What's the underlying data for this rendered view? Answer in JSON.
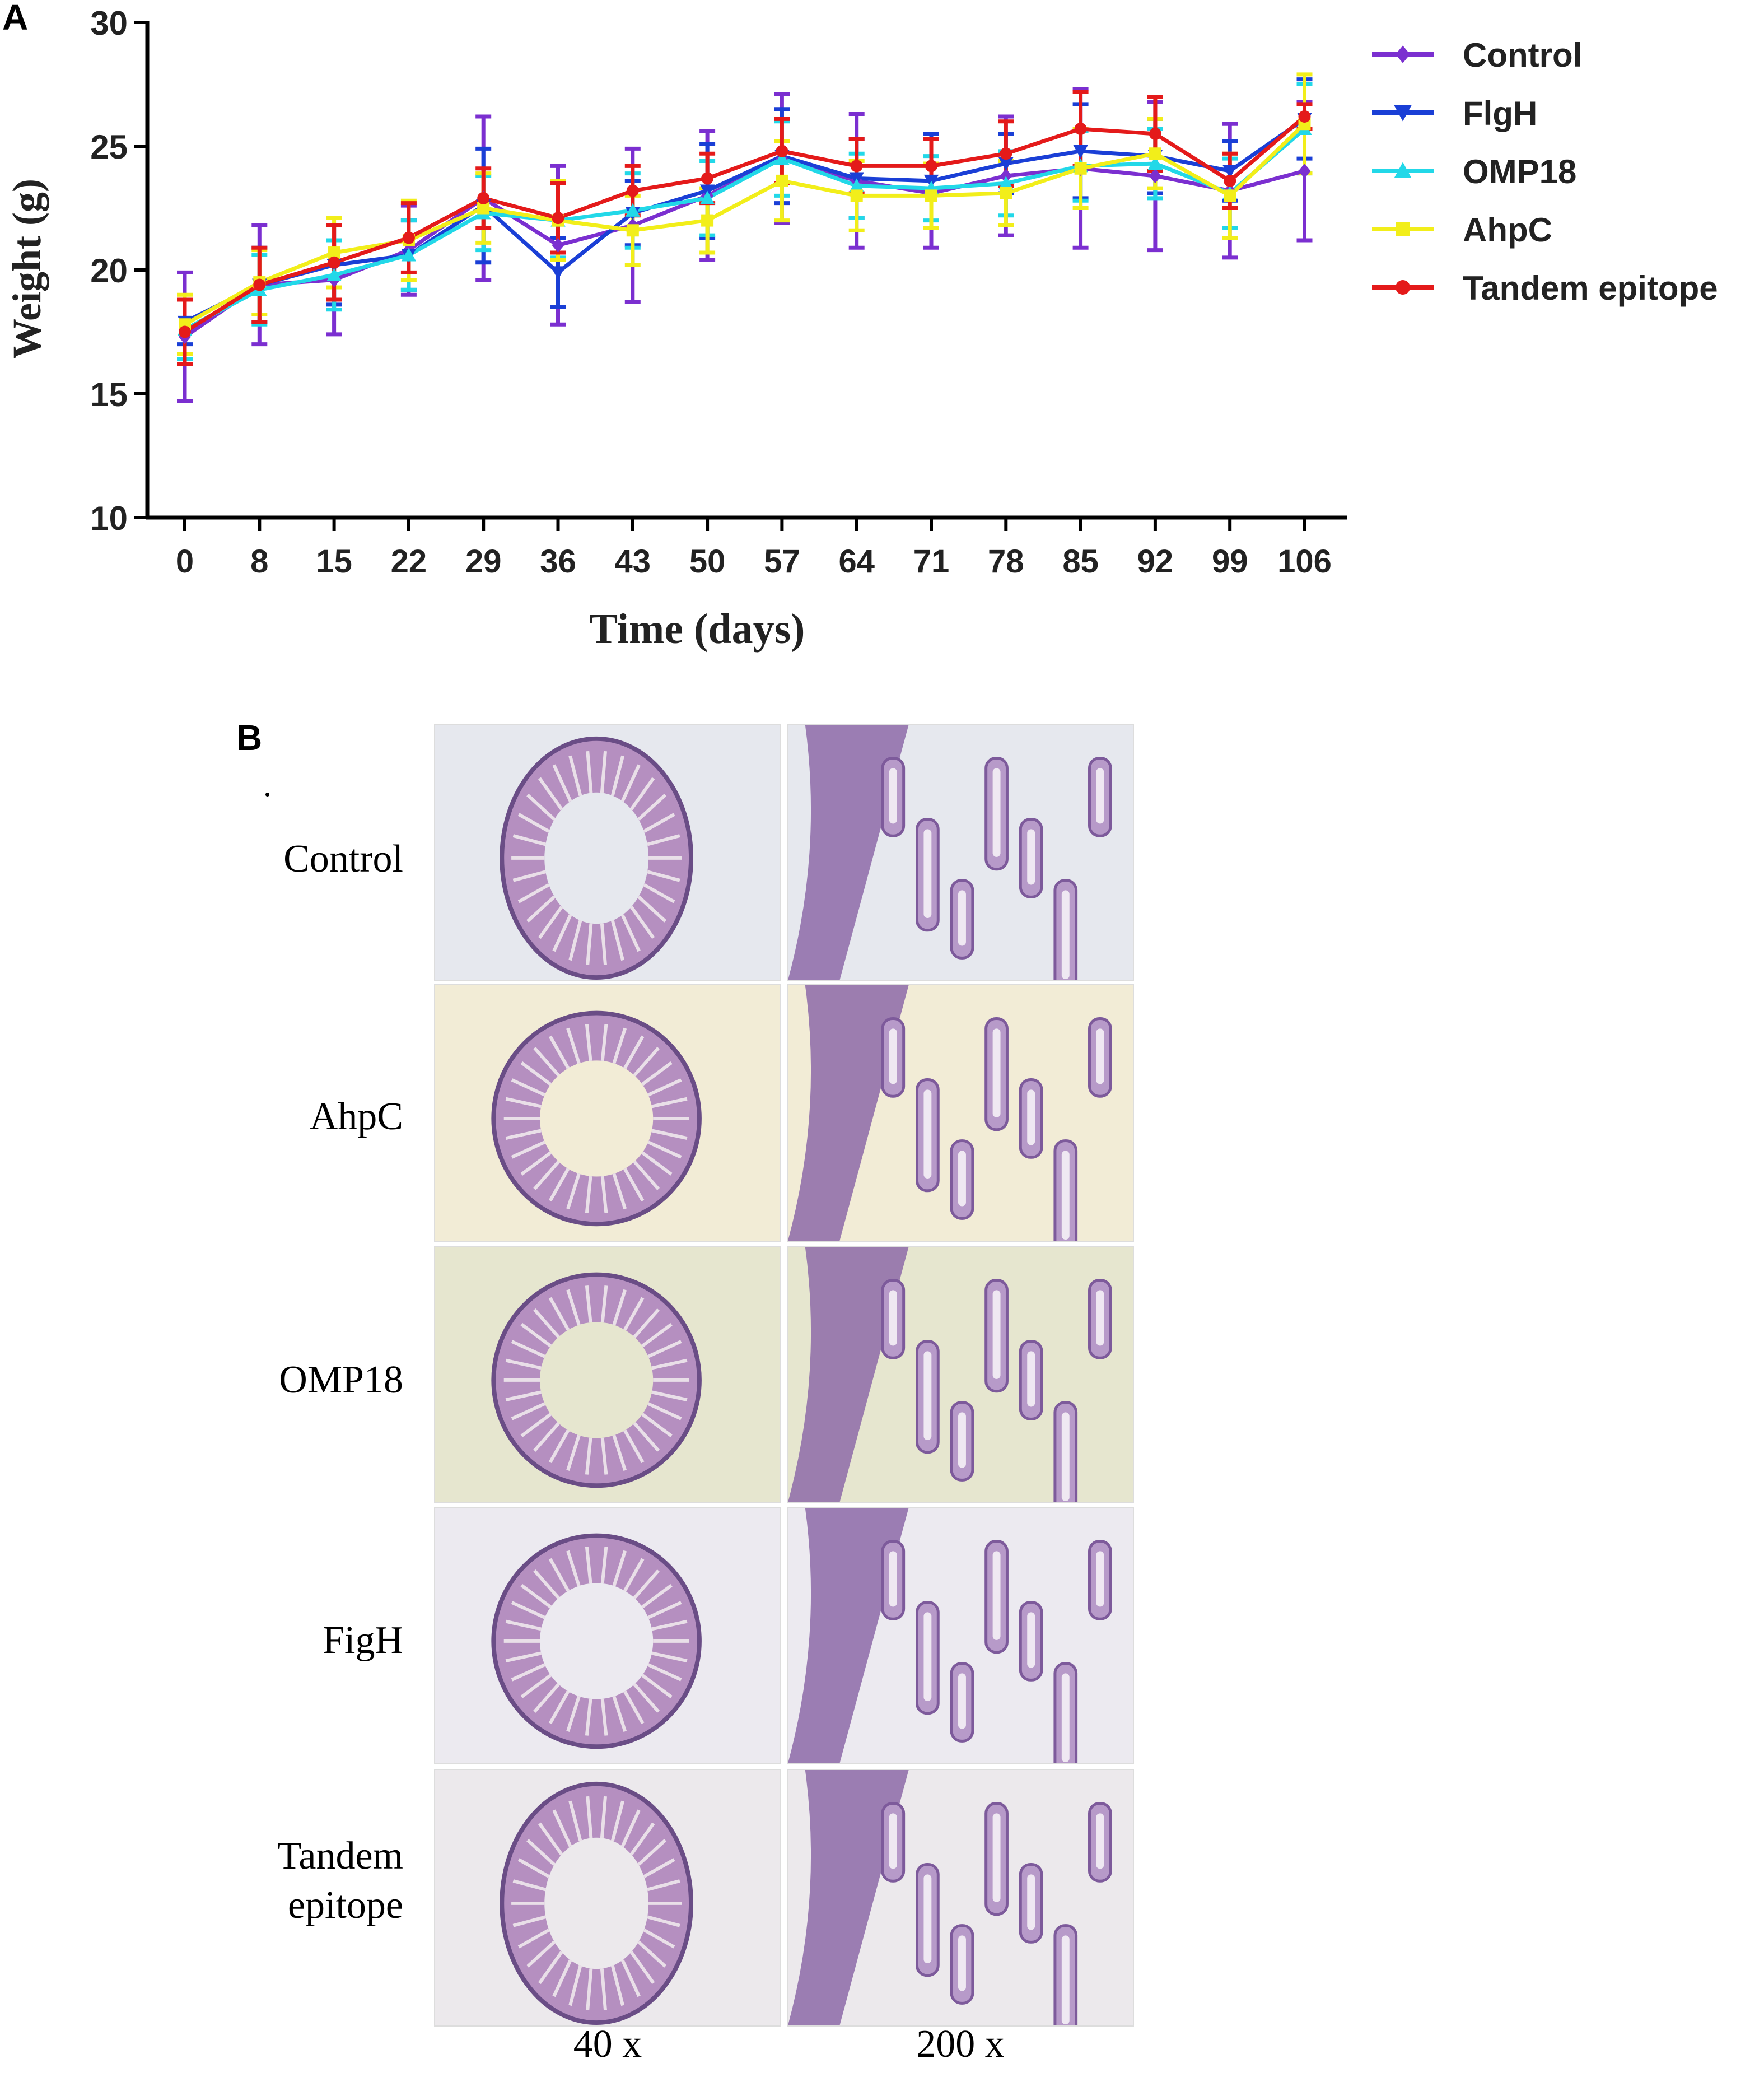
{
  "panel_a_label": "A",
  "panel_b_label": "B",
  "chart_data": {
    "type": "line",
    "title": "",
    "xlabel": "Time (days)",
    "ylabel": "Weight (g)",
    "ylim": [
      10,
      30
    ],
    "yticks": [
      10,
      15,
      20,
      25,
      30
    ],
    "x": [
      0,
      8,
      15,
      22,
      29,
      36,
      43,
      50,
      57,
      64,
      71,
      78,
      85,
      92,
      99,
      106
    ],
    "legend_position": "right",
    "series": [
      {
        "name": "Control",
        "color": "#7b2fd0",
        "marker": "diamond",
        "values": [
          17.3,
          19.4,
          19.6,
          20.8,
          22.9,
          21.0,
          21.8,
          23.0,
          24.5,
          23.6,
          23.1,
          23.8,
          24.1,
          23.8,
          23.2,
          24.0
        ],
        "errors": [
          2.6,
          2.4,
          2.2,
          1.8,
          3.3,
          3.2,
          3.1,
          2.6,
          2.6,
          2.7,
          2.2,
          2.4,
          3.2,
          3.0,
          2.7,
          2.8
        ]
      },
      {
        "name": "FlgH",
        "color": "#1a3fd6",
        "marker": "triangle-down",
        "values": [
          17.9,
          19.4,
          20.2,
          20.6,
          22.6,
          19.9,
          22.3,
          23.2,
          24.6,
          23.7,
          23.6,
          24.3,
          24.8,
          24.6,
          24.0,
          26.1
        ],
        "errors": [
          0.9,
          1.5,
          1.6,
          1.4,
          2.3,
          1.4,
          1.3,
          1.9,
          1.9,
          1.6,
          1.9,
          1.2,
          1.9,
          1.5,
          1.2,
          1.6
        ]
      },
      {
        "name": "OMP18",
        "color": "#22d8e8",
        "marker": "triangle-up",
        "values": [
          17.6,
          19.2,
          19.8,
          20.6,
          22.3,
          22.0,
          22.4,
          22.9,
          24.5,
          23.4,
          23.3,
          23.5,
          24.2,
          24.3,
          23.1,
          25.7
        ],
        "errors": [
          1.2,
          1.4,
          1.4,
          1.4,
          1.5,
          1.5,
          1.5,
          1.5,
          1.5,
          1.3,
          1.3,
          1.3,
          1.4,
          1.4,
          1.4,
          1.8
        ]
      },
      {
        "name": "AhpC",
        "color": "#f2ee1a",
        "marker": "square",
        "values": [
          17.8,
          19.5,
          20.7,
          21.2,
          22.5,
          22.0,
          21.6,
          22.0,
          23.6,
          23.0,
          23.0,
          23.1,
          24.1,
          24.7,
          23.0,
          25.9
        ],
        "errors": [
          1.2,
          1.3,
          1.4,
          1.6,
          1.4,
          1.6,
          1.4,
          1.3,
          1.6,
          1.4,
          1.3,
          1.3,
          1.6,
          1.4,
          1.7,
          2.0
        ]
      },
      {
        "name": "Tandem epitope",
        "color": "#e41a1a",
        "marker": "circle",
        "values": [
          17.5,
          19.4,
          20.3,
          21.3,
          22.9,
          22.1,
          23.2,
          23.7,
          24.8,
          24.2,
          24.2,
          24.7,
          25.7,
          25.5,
          23.6,
          26.2
        ],
        "errors": [
          1.3,
          1.5,
          1.5,
          1.4,
          1.2,
          1.4,
          1.0,
          1.0,
          1.3,
          1.1,
          1.1,
          1.3,
          1.5,
          1.5,
          1.1,
          0.5
        ]
      }
    ]
  },
  "histology": {
    "rows": [
      {
        "label_lines": [
          "Control"
        ]
      },
      {
        "label_lines": [
          "AhpC"
        ]
      },
      {
        "label_lines": [
          "OMP18"
        ]
      },
      {
        "label_lines": [
          "FigH"
        ]
      },
      {
        "label_lines": [
          "Tandem",
          "epitope"
        ]
      }
    ],
    "columns": [
      "40 x",
      "200 x"
    ],
    "background_tints": [
      "#e6e8ee",
      "#f2ecd6",
      "#e6e6cf",
      "#eceaf0",
      "#ece9ec"
    ]
  }
}
